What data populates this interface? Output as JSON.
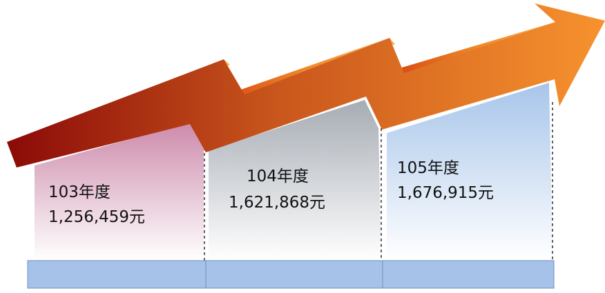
{
  "panels": [
    {
      "year": "103年度",
      "amount": "1,256,459元"
    },
    {
      "year": "104年度",
      "amount": "1,621,868元"
    },
    {
      "year": "105年度",
      "amount": "1,676,915元"
    }
  ],
  "colors": {
    "arrow_start": "#8b0a08",
    "arrow_mid": "#c9561c",
    "arrow_end": "#f7922e",
    "panel_103_top": "#cd8aab",
    "panel_104_top": "#a6acb4",
    "panel_105_top": "#a7c5ea",
    "base_block": "#a7c2e8"
  }
}
